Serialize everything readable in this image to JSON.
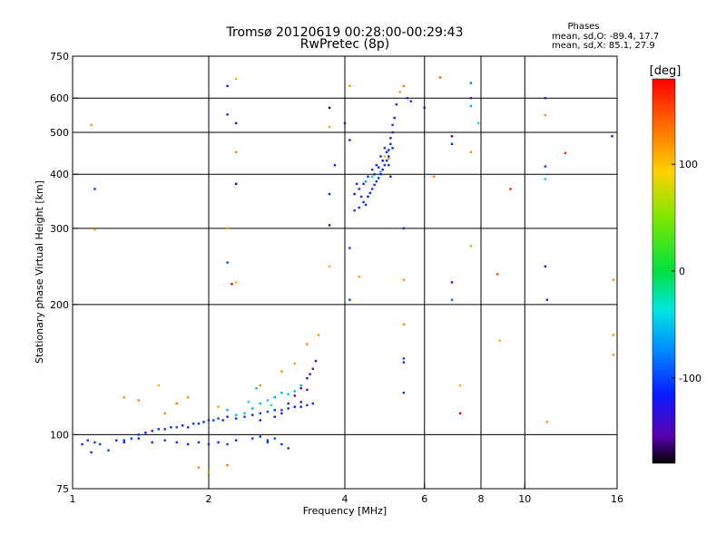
{
  "chart_data": {
    "type": "scatter",
    "title": "Tromsø 20120619 00:28:00-00:29:43",
    "subtitle": "RwPretec (8p)",
    "stats": {
      "heading": "Phases",
      "line_o": "mean, sd,O: -89.4, 17.7",
      "line_x": "mean, sd,X: 85.1, 27.9"
    },
    "xlabel": "Frequency [MHz]",
    "ylabel": "Stationary phase Virtual Height [km]",
    "x_scale": "log",
    "y_scale": "log",
    "xlim": [
      1,
      16
    ],
    "ylim": [
      75,
      750
    ],
    "x_ticks": [
      1,
      2,
      4,
      6,
      8,
      10,
      16
    ],
    "x_tick_labels": [
      "1",
      "2",
      "4",
      "6",
      "8",
      "10",
      "16"
    ],
    "y_ticks": [
      75,
      100,
      200,
      300,
      400,
      500,
      600,
      750
    ],
    "y_tick_labels": [
      "75",
      "100",
      "200",
      "300",
      "400",
      "500",
      "600",
      "750"
    ],
    "grid_x": [
      2,
      4,
      6,
      8,
      10
    ],
    "grid_y": [
      100,
      200,
      300,
      400,
      500,
      600
    ],
    "colorbar": {
      "label": "[deg]",
      "range": [
        -180,
        180
      ],
      "ticks": [
        100,
        0,
        -100
      ],
      "tick_labels": [
        "100",
        "0",
        "-100"
      ]
    },
    "series": [
      {
        "point_format": "[frequency MHz, virtual height km, phase deg]",
        "points": [
          [
            1.05,
            95,
            -110
          ],
          [
            1.08,
            97,
            -105
          ],
          [
            1.12,
            96,
            -108
          ],
          [
            1.15,
            95,
            -100
          ],
          [
            1.25,
            97,
            -110
          ],
          [
            1.3,
            96,
            -115
          ],
          [
            1.35,
            98,
            -105
          ],
          [
            1.4,
            100,
            -110
          ],
          [
            1.45,
            101,
            -115
          ],
          [
            1.5,
            102,
            -120
          ],
          [
            1.55,
            103,
            -108
          ],
          [
            1.6,
            103,
            -110
          ],
          [
            1.65,
            104,
            -112
          ],
          [
            1.7,
            104,
            -105
          ],
          [
            1.75,
            105,
            -115
          ],
          [
            1.8,
            104,
            -110
          ],
          [
            1.85,
            106,
            -108
          ],
          [
            1.9,
            106,
            -112
          ],
          [
            1.95,
            107,
            -115
          ],
          [
            2.0,
            108,
            -110
          ],
          [
            2.05,
            108,
            -105
          ],
          [
            2.1,
            109,
            -100
          ],
          [
            2.15,
            108,
            -110
          ],
          [
            2.2,
            110,
            -115
          ],
          [
            2.3,
            109,
            -108
          ],
          [
            2.4,
            110,
            -110
          ],
          [
            2.5,
            111,
            -112
          ],
          [
            2.6,
            112,
            -105
          ],
          [
            2.7,
            113,
            -100
          ],
          [
            2.8,
            114,
            -110
          ],
          [
            2.9,
            114,
            -108
          ],
          [
            3.0,
            115,
            -112
          ],
          [
            3.1,
            116,
            -115
          ],
          [
            3.2,
            116,
            -110
          ],
          [
            3.3,
            117,
            -108
          ],
          [
            3.4,
            118,
            -112
          ],
          [
            1.3,
            97,
            -110
          ],
          [
            1.4,
            98,
            -112
          ],
          [
            1.5,
            96,
            -108
          ],
          [
            1.6,
            97,
            -105
          ],
          [
            1.7,
            96,
            -110
          ],
          [
            1.8,
            95,
            -115
          ],
          [
            1.9,
            96,
            -108
          ],
          [
            2.0,
            95,
            -110
          ],
          [
            2.1,
            96,
            -112
          ],
          [
            2.2,
            95,
            -105
          ],
          [
            2.3,
            97,
            -110
          ],
          [
            2.5,
            98,
            -108
          ],
          [
            2.6,
            99,
            -112
          ],
          [
            2.7,
            97,
            -110
          ],
          [
            2.8,
            98,
            -100
          ],
          [
            2.5,
            115,
            -60
          ],
          [
            2.6,
            118,
            -55
          ],
          [
            2.7,
            120,
            -50
          ],
          [
            2.8,
            122,
            -65
          ],
          [
            2.9,
            125,
            -60
          ],
          [
            3.0,
            124,
            -50
          ],
          [
            3.1,
            126,
            -55
          ],
          [
            3.2,
            130,
            -60
          ],
          [
            2.4,
            112,
            -45
          ],
          [
            2.3,
            111,
            -50
          ],
          [
            2.2,
            114,
            -60
          ],
          [
            2.45,
            119,
            -40
          ],
          [
            2.75,
            117,
            -35
          ],
          [
            2.55,
            128,
            -55
          ],
          [
            2.6,
            108,
            -130
          ],
          [
            2.8,
            110,
            -140
          ],
          [
            2.9,
            112,
            -135
          ],
          [
            3.0,
            118,
            -140
          ],
          [
            3.1,
            123,
            -150
          ],
          [
            3.2,
            128,
            -140
          ],
          [
            3.3,
            135,
            -145
          ],
          [
            3.35,
            138,
            -150
          ],
          [
            3.4,
            142,
            -140
          ],
          [
            3.45,
            148,
            -135
          ],
          [
            3.3,
            127,
            -145
          ],
          [
            3.2,
            119,
            -130
          ],
          [
            1.6,
            112,
            125
          ],
          [
            1.7,
            118,
            130
          ],
          [
            1.8,
            122,
            120
          ],
          [
            1.55,
            130,
            110
          ],
          [
            1.4,
            120,
            125
          ],
          [
            1.3,
            122,
            120
          ],
          [
            2.1,
            116,
            115
          ],
          [
            2.6,
            130,
            125
          ],
          [
            2.9,
            140,
            120
          ],
          [
            3.1,
            146,
            115
          ],
          [
            3.3,
            162,
            125
          ],
          [
            3.5,
            170,
            120
          ],
          [
            2.2,
            85,
            130
          ],
          [
            1.9,
            84,
            125
          ],
          [
            2.0,
            82,
            120
          ],
          [
            1.1,
            91,
            -110
          ],
          [
            1.2,
            92,
            -105
          ],
          [
            2.7,
            96,
            -100
          ],
          [
            2.9,
            95,
            -110
          ],
          [
            3.0,
            93,
            -105
          ],
          [
            4.2,
            330,
            -110
          ],
          [
            4.3,
            335,
            -112
          ],
          [
            4.4,
            345,
            -108
          ],
          [
            4.5,
            355,
            -115
          ],
          [
            4.55,
            362,
            -110
          ],
          [
            4.6,
            370,
            -105
          ],
          [
            4.65,
            378,
            -110
          ],
          [
            4.7,
            385,
            -112
          ],
          [
            4.75,
            392,
            -108
          ],
          [
            4.8,
            400,
            -110
          ],
          [
            4.85,
            410,
            -115
          ],
          [
            4.9,
            420,
            -110
          ],
          [
            4.95,
            430,
            -108
          ],
          [
            5.0,
            440,
            -112
          ],
          [
            5.0,
            455,
            -110
          ],
          [
            5.05,
            470,
            -108
          ],
          [
            5.05,
            485,
            -115
          ],
          [
            5.1,
            500,
            -110
          ],
          [
            5.1,
            520,
            -105
          ],
          [
            5.15,
            540,
            -112
          ],
          [
            4.3,
            370,
            -110
          ],
          [
            4.4,
            380,
            -112
          ],
          [
            4.5,
            395,
            -108
          ],
          [
            4.6,
            410,
            -105
          ],
          [
            4.7,
            420,
            -110
          ],
          [
            4.8,
            440,
            -112
          ],
          [
            4.9,
            460,
            -108
          ],
          [
            4.2,
            360,
            -115
          ],
          [
            4.25,
            380,
            -110
          ],
          [
            4.35,
            355,
            -108
          ],
          [
            4.45,
            340,
            -105
          ],
          [
            4.65,
            400,
            -110
          ],
          [
            4.75,
            415,
            -112
          ],
          [
            4.85,
            430,
            -115
          ],
          [
            4.95,
            450,
            -110
          ],
          [
            5.0,
            420,
            -108
          ],
          [
            5.05,
            395,
            -112
          ],
          [
            5.1,
            460,
            -110
          ],
          [
            4.45,
            385,
            -60
          ],
          [
            4.6,
            395,
            -40
          ],
          [
            4.8,
            405,
            -20
          ],
          [
            4.9,
            440,
            100
          ],
          [
            5.0,
            435,
            120
          ],
          [
            5.2,
            580,
            -110
          ],
          [
            5.3,
            620,
            120
          ],
          [
            5.4,
            640,
            130
          ],
          [
            5.5,
            600,
            -110
          ],
          [
            5.6,
            590,
            -105
          ],
          [
            2.2,
            640,
            -120
          ],
          [
            2.3,
            525,
            -150
          ],
          [
            2.2,
            550,
            -110
          ],
          [
            2.3,
            450,
            125
          ],
          [
            2.3,
            380,
            -160
          ],
          [
            2.2,
            300,
            115
          ],
          [
            2.2,
            250,
            -100
          ],
          [
            2.25,
            223,
            180
          ],
          [
            2.3,
            225,
            110
          ],
          [
            2.3,
            665,
            110
          ],
          [
            3.7,
            515,
            115
          ],
          [
            3.7,
            570,
            -170
          ],
          [
            3.7,
            360,
            -110
          ],
          [
            3.8,
            420,
            -120
          ],
          [
            3.7,
            305,
            -160
          ],
          [
            3.7,
            245,
            110
          ],
          [
            4.1,
            640,
            120
          ],
          [
            4.0,
            525,
            -120
          ],
          [
            4.1,
            480,
            -130
          ],
          [
            4.1,
            270,
            -100
          ],
          [
            4.1,
            205,
            -100
          ],
          [
            4.3,
            232,
            120
          ],
          [
            5.4,
            300,
            -110
          ],
          [
            5.4,
            228,
            120
          ],
          [
            5.4,
            180,
            120
          ],
          [
            5.4,
            150,
            -100
          ],
          [
            5.4,
            147,
            -110
          ],
          [
            5.4,
            125,
            -105
          ],
          [
            6.0,
            570,
            -140
          ],
          [
            6.3,
            395,
            120
          ],
          [
            6.5,
            670,
            140
          ],
          [
            6.9,
            490,
            -160
          ],
          [
            6.9,
            470,
            -110
          ],
          [
            6.9,
            225,
            -150
          ],
          [
            6.9,
            205,
            -90
          ],
          [
            7.2,
            130,
            110
          ],
          [
            7.2,
            112,
            180
          ],
          [
            7.6,
            650,
            -80
          ],
          [
            7.6,
            600,
            -130
          ],
          [
            7.6,
            575,
            -60
          ],
          [
            7.6,
            450,
            120
          ],
          [
            7.6,
            273,
            40
          ],
          [
            7.9,
            525,
            -40
          ],
          [
            8.7,
            235,
            150
          ],
          [
            8.8,
            165,
            115
          ],
          [
            9.3,
            370,
            170
          ],
          [
            11.1,
            600,
            -120
          ],
          [
            11.1,
            548,
            120
          ],
          [
            11.1,
            417,
            -110
          ],
          [
            11.1,
            390,
            -20
          ],
          [
            11.1,
            245,
            -130
          ],
          [
            11.2,
            205,
            -110
          ],
          [
            11.2,
            107,
            120
          ],
          [
            12.3,
            448,
            165
          ],
          [
            15.6,
            490,
            -130
          ],
          [
            15.7,
            228,
            120
          ],
          [
            15.7,
            170,
            120
          ],
          [
            15.7,
            153,
            120
          ],
          [
            1.1,
            520,
            120
          ],
          [
            1.12,
            298,
            120
          ],
          [
            1.12,
            370,
            -110
          ]
        ]
      }
    ]
  }
}
